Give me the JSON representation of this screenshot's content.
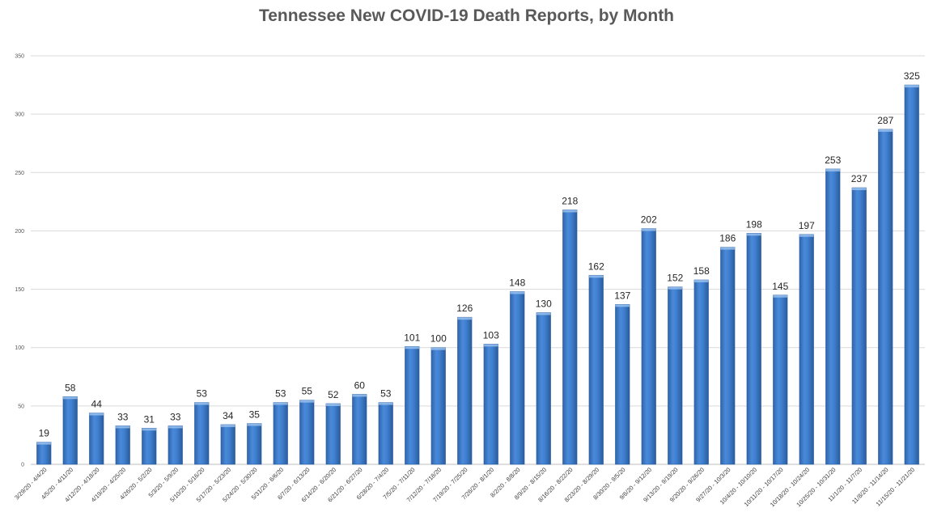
{
  "chart_data": {
    "type": "bar",
    "title": "Tennessee New COVID-19 Death Reports, by Month",
    "xlabel": "",
    "ylabel": "",
    "ylim": [
      0,
      350
    ],
    "yticks": [
      0,
      50,
      100,
      150,
      200,
      250,
      300,
      350
    ],
    "grid": true,
    "legend": "none",
    "colors": {
      "bar": "#3f7fcf",
      "bar_edge": "#2a5c9c",
      "grid": "#d9d9d9"
    },
    "categories": [
      "3/29/20 - 4/4/20",
      "4/5/20 - 4/11/20",
      "4/12/20 - 4/18/20",
      "4/19/20 - 4/25/20",
      "4/26/20 - 5/2/20",
      "5/3/20 - 5/9/20",
      "5/10/20 - 5/16/20",
      "5/17/20 - 5/23/20",
      "5/24/20 - 5/30/20",
      "5/31/20 - 6/6/20",
      "6/7/20 - 6/13/20",
      "6/14/20 - 6/20/20",
      "6/21/20 - 6/27/20",
      "6/28/20 - 7/4/20",
      "7/5/20 - 7/11/20",
      "7/12/20 - 7/18/20",
      "7/19/20 - 7/25/20",
      "7/26/20 - 8/1/20",
      "8/2/20 - 8/8/20",
      "8/9/20 - 8/15/20",
      "8/16/20 - 8/22/20",
      "8/23/20 - 8/29/20",
      "8/30/20 - 9/5/20",
      "9/6/20 - 9/12/20",
      "9/13/20 - 9/19/20",
      "9/20/20 - 9/26/20",
      "9/27/20 - 10/3/20",
      "10/4/20 - 10/10/20",
      "10/11/20 - 10/17/20",
      "10/18/20 - 10/24/20",
      "10/25/20 - 10/31/20",
      "11/1/20 - 11/7/20",
      "11/8/20 - 11/14/20",
      "11/15/20 - 11/21/20"
    ],
    "values": [
      19,
      58,
      44,
      33,
      31,
      33,
      53,
      34,
      35,
      53,
      55,
      52,
      60,
      53,
      101,
      100,
      126,
      103,
      148,
      130,
      218,
      162,
      137,
      202,
      152,
      158,
      186,
      198,
      145,
      197,
      253,
      237,
      287,
      325
    ]
  }
}
